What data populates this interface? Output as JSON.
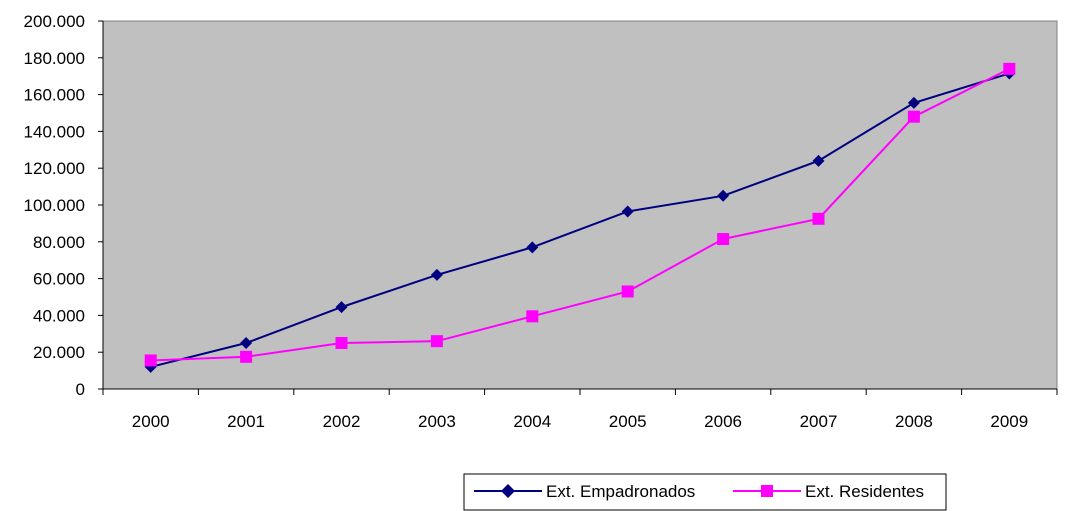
{
  "chart_data": {
    "type": "line",
    "title": "",
    "xlabel": "",
    "ylabel": "",
    "categories": [
      "2000",
      "2001",
      "2002",
      "2003",
      "2004",
      "2005",
      "2006",
      "2007",
      "2008",
      "2009"
    ],
    "ylim": [
      0,
      200000
    ],
    "yticks": [
      "0",
      "20.000",
      "40.000",
      "60.000",
      "80.000",
      "100.000",
      "120.000",
      "140.000",
      "160.000",
      "180.000",
      "200.000"
    ],
    "grid": false,
    "plot_background": "#c0c0c0",
    "legend_position": "bottom",
    "series": [
      {
        "name": "Ext. Empadronados",
        "color": "#000080",
        "marker": "diamond",
        "values": [
          12000,
          25000,
          44500,
          62000,
          77000,
          96500,
          105000,
          124000,
          155500,
          171500
        ]
      },
      {
        "name": "Ext. Residentes",
        "color": "#ff00ff",
        "marker": "square",
        "values": [
          15500,
          17500,
          25000,
          26000,
          39500,
          53000,
          81500,
          92500,
          148000,
          174000
        ]
      }
    ]
  }
}
